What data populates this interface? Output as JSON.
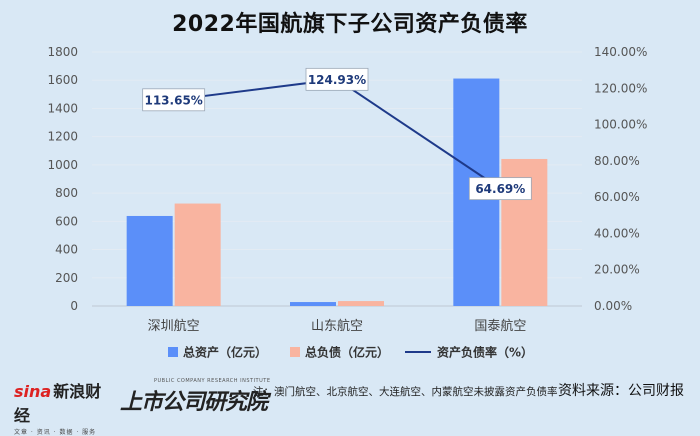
{
  "title": "2022年国航旗下子公司资产负债率",
  "chart_data": {
    "type": "bar",
    "title": "2022年国航旗下子公司资产负债率",
    "categories": [
      "深圳航空",
      "山东航空",
      "国泰航空"
    ],
    "series": [
      {
        "name": "总资产（亿元）",
        "type": "bar",
        "axis": "left",
        "color": "#5b8ff9",
        "values": [
          638,
          28,
          1612
        ]
      },
      {
        "name": "总负债（亿元）",
        "type": "bar",
        "axis": "left",
        "color": "#f9b4a0",
        "values": [
          726,
          35,
          1042
        ]
      },
      {
        "name": "资产负债率（%）",
        "type": "line",
        "axis": "right",
        "color": "#1e3a8a",
        "values": [
          113.65,
          124.93,
          64.69
        ],
        "labels": [
          "113.65%",
          "124.93%",
          "64.69%"
        ]
      }
    ],
    "y_left": {
      "min": 0,
      "max": 1800,
      "ticks": [
        0,
        200,
        400,
        600,
        800,
        1000,
        1200,
        1400,
        1600,
        1800
      ]
    },
    "y_right": {
      "min": 0,
      "max": 140,
      "ticks": [
        0,
        20,
        40,
        60,
        80,
        100,
        120,
        140
      ],
      "tick_labels": [
        "0.00%",
        "20.00%",
        "40.00%",
        "60.00%",
        "80.00%",
        "100.00%",
        "120.00%",
        "140.00%"
      ]
    },
    "grid": true,
    "legend_position": "bottom"
  },
  "footer": {
    "sina_logo": "sina新浪财经",
    "sina_sub": "文章 · 资讯 · 数据 · 服务",
    "ssgs_en": "PUBLIC COMPANY RESEARCH INSTITUTE",
    "ssgs_cn": "上市公司研究院",
    "note": "注：澳门航空、北京航空、大连航空、内蒙航空未披露资产负债率",
    "source": "资料来源：公司财报"
  }
}
